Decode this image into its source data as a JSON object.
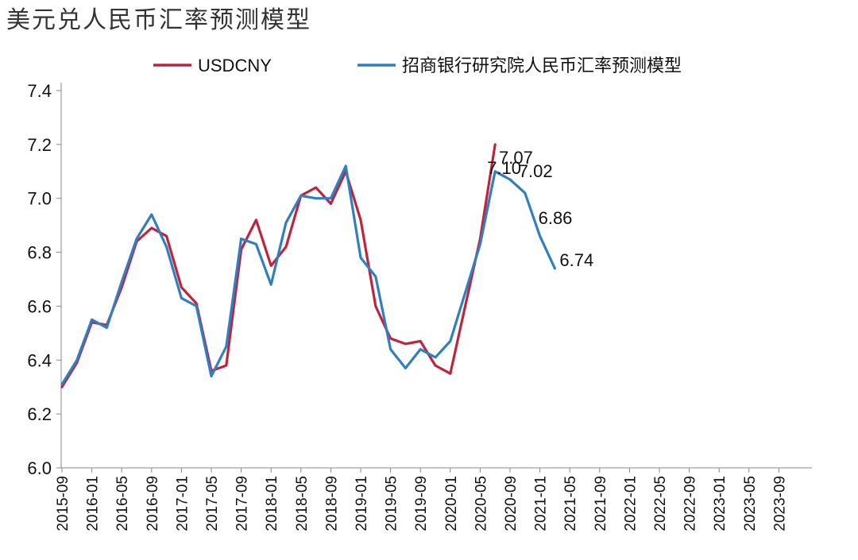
{
  "title": "美元兑人民币汇率预测模型",
  "chart_data": {
    "type": "line",
    "title": "美元兑人民币汇率预测模型",
    "ylim": [
      6.0,
      7.4
    ],
    "yticks": [
      "6.0",
      "6.2",
      "6.4",
      "6.6",
      "6.8",
      "7.0",
      "7.2",
      "7.4"
    ],
    "xtick_labels": [
      "2015-09",
      "2016-01",
      "2016-05",
      "2016-09",
      "2017-01",
      "2017-05",
      "2017-09",
      "2018-01",
      "2018-05",
      "2018-09",
      "2019-01",
      "2019-05",
      "2019-09",
      "2020-01",
      "2020-05",
      "2020-09",
      "2021-01",
      "2021-05",
      "2021-09",
      "2022-01",
      "2022-05",
      "2022-09",
      "2023-01",
      "2023-05",
      "2023-09"
    ],
    "legend_position": "top",
    "series": [
      {
        "name": "USDCNY",
        "color": "#c0243c",
        "points": [
          [
            "2015-09",
            6.3
          ],
          [
            "2015-11",
            6.39
          ],
          [
            "2016-01",
            6.54
          ],
          [
            "2016-03",
            6.53
          ],
          [
            "2016-05",
            6.67
          ],
          [
            "2016-07",
            6.84
          ],
          [
            "2016-09",
            6.89
          ],
          [
            "2016-11",
            6.86
          ],
          [
            "2017-01",
            6.67
          ],
          [
            "2017-03",
            6.61
          ],
          [
            "2017-05",
            6.36
          ],
          [
            "2017-07",
            6.38
          ],
          [
            "2017-09",
            6.81
          ],
          [
            "2017-11",
            6.92
          ],
          [
            "2018-01",
            6.75
          ],
          [
            "2018-03",
            6.82
          ],
          [
            "2018-05",
            7.01
          ],
          [
            "2018-07",
            7.04
          ],
          [
            "2018-09",
            6.98
          ],
          [
            "2018-11",
            7.1
          ],
          [
            "2019-01",
            6.92
          ],
          [
            "2019-03",
            6.6
          ],
          [
            "2019-05",
            6.48
          ],
          [
            "2019-07",
            6.46
          ],
          [
            "2019-09",
            6.47
          ],
          [
            "2019-11",
            6.38
          ],
          [
            "2020-01",
            6.35
          ],
          [
            "2020-03",
            6.6
          ],
          [
            "2020-05",
            6.85
          ],
          [
            "2020-07",
            7.2
          ]
        ]
      },
      {
        "name": "招商银行研究院人民币汇率预测模型",
        "color": "#2f7fc1",
        "points": [
          [
            "2015-09",
            6.31
          ],
          [
            "2015-11",
            6.4
          ],
          [
            "2016-01",
            6.55
          ],
          [
            "2016-03",
            6.52
          ],
          [
            "2016-05",
            6.69
          ],
          [
            "2016-07",
            6.85
          ],
          [
            "2016-09",
            6.94
          ],
          [
            "2016-11",
            6.82
          ],
          [
            "2017-01",
            6.63
          ],
          [
            "2017-03",
            6.6
          ],
          [
            "2017-05",
            6.34
          ],
          [
            "2017-07",
            6.45
          ],
          [
            "2017-09",
            6.85
          ],
          [
            "2017-11",
            6.83
          ],
          [
            "2018-01",
            6.68
          ],
          [
            "2018-03",
            6.91
          ],
          [
            "2018-05",
            7.01
          ],
          [
            "2018-07",
            7.0
          ],
          [
            "2018-09",
            7.0
          ],
          [
            "2018-11",
            7.12
          ],
          [
            "2019-01",
            6.78
          ],
          [
            "2019-03",
            6.71
          ],
          [
            "2019-05",
            6.44
          ],
          [
            "2019-07",
            6.37
          ],
          [
            "2019-09",
            6.44
          ],
          [
            "2019-11",
            6.41
          ],
          [
            "2020-01",
            6.47
          ],
          [
            "2020-03",
            6.65
          ],
          [
            "2020-05",
            6.83
          ],
          [
            "2020-07",
            7.1
          ],
          [
            "2020-09",
            7.07
          ],
          [
            "2020-11",
            7.02
          ],
          [
            "2021-01",
            6.86
          ],
          [
            "2021-03",
            6.74
          ]
        ]
      }
    ],
    "annotations": [
      {
        "text": "7.10",
        "x": "2020-07",
        "y": 7.1
      },
      {
        "text": "7.07",
        "x": "2020-09",
        "y": 7.07
      },
      {
        "text": "7.02",
        "x": "2020-11",
        "y": 7.02
      },
      {
        "text": "6.86",
        "x": "2021-01",
        "y": 6.86
      },
      {
        "text": "6.74",
        "x": "2021-03",
        "y": 6.74
      }
    ]
  }
}
